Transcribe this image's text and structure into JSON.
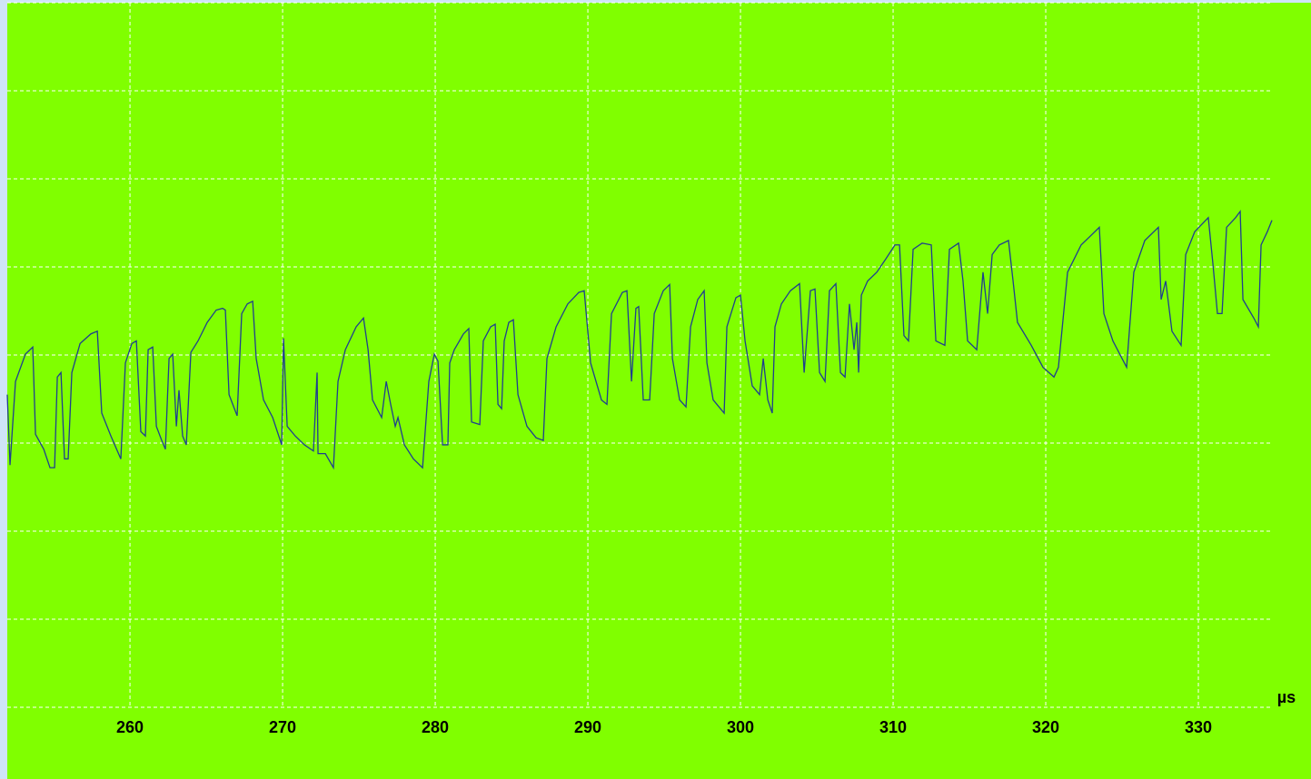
{
  "chart_data": {
    "type": "line",
    "x_label": "µs",
    "xlim": [
      251.96,
      334.82
    ],
    "xticks": [
      260,
      270,
      280,
      290,
      300,
      310,
      320,
      330
    ],
    "ylim": [
      0,
      8
    ],
    "yticks": [
      0,
      1,
      2,
      3,
      4,
      5,
      6,
      7,
      8
    ],
    "grid": true,
    "series": [
      {
        "color": "#1f3f8f",
        "x": [
          251.96,
          252.14,
          252.5,
          253.15,
          253.63,
          253.81,
          254.35,
          254.76,
          255.06,
          255.24,
          255.48,
          255.71,
          255.95,
          256.19,
          256.73,
          257.44,
          257.86,
          258.15,
          258.75,
          259.4,
          259.7,
          260.12,
          260.42,
          260.71,
          261.01,
          261.19,
          261.49,
          261.73,
          262.08,
          262.32,
          262.56,
          262.8,
          263.04,
          263.21,
          263.45,
          263.69,
          263.99,
          264.46,
          265.06,
          265.65,
          266.07,
          266.25,
          266.49,
          267.02,
          267.32,
          267.68,
          268.04,
          268.27,
          268.75,
          269.35,
          269.94,
          270.06,
          270.3,
          270.83,
          271.43,
          272.02,
          272.26,
          272.32,
          272.8,
          273.33,
          273.63,
          274.11,
          274.82,
          275.3,
          275.6,
          275.89,
          276.49,
          276.79,
          277.08,
          277.38,
          277.56,
          277.98,
          278.57,
          279.17,
          279.58,
          279.94,
          280.18,
          280.48,
          280.83,
          280.95,
          281.25,
          281.85,
          282.2,
          282.38,
          282.92,
          283.15,
          283.63,
          283.93,
          284.11,
          284.35,
          284.52,
          284.82,
          285.12,
          285.42,
          286.01,
          286.61,
          287.08,
          287.32,
          287.92,
          288.69,
          289.4,
          289.76,
          290.18,
          290.89,
          291.25,
          291.55,
          292.26,
          292.56,
          292.86,
          293.15,
          293.33,
          293.63,
          294.05,
          294.35,
          294.94,
          295.36,
          295.54,
          296.01,
          296.43,
          296.73,
          297.2,
          297.62,
          297.8,
          298.21,
          298.93,
          299.11,
          299.7,
          300.0,
          300.3,
          300.77,
          301.25,
          301.49,
          301.79,
          302.08,
          302.26,
          302.68,
          303.27,
          303.87,
          304.17,
          304.58,
          304.88,
          305.18,
          305.54,
          305.83,
          306.25,
          306.55,
          306.85,
          307.14,
          307.44,
          307.62,
          307.74,
          307.92,
          308.33,
          308.93,
          309.52,
          310.12,
          310.42,
          310.71,
          311.01,
          311.31,
          311.9,
          312.5,
          312.8,
          313.39,
          313.69,
          314.29,
          314.58,
          314.88,
          315.48,
          315.89,
          316.19,
          316.49,
          316.96,
          317.56,
          317.86,
          318.15,
          319.05,
          319.82,
          320.54,
          320.83,
          321.43,
          322.32,
          322.92,
          323.51,
          323.81,
          324.4,
          325.3,
          325.77,
          326.49,
          327.38,
          327.56,
          327.86,
          328.27,
          328.87,
          329.17,
          329.76,
          330.65,
          330.95,
          331.25,
          331.55,
          331.85,
          332.44,
          332.74,
          332.92,
          333.63,
          333.93,
          334.11,
          334.52,
          334.82
        ],
        "values": [
          3.55,
          2.75,
          3.7,
          4.01,
          4.09,
          3.1,
          2.93,
          2.72,
          2.72,
          3.75,
          3.8,
          2.82,
          2.82,
          3.8,
          4.13,
          4.24,
          4.27,
          3.34,
          3.08,
          2.82,
          3.91,
          4.13,
          4.16,
          3.13,
          3.08,
          4.06,
          4.09,
          3.19,
          3.03,
          2.93,
          3.96,
          4.01,
          3.19,
          3.6,
          3.08,
          2.98,
          4.03,
          4.16,
          4.37,
          4.51,
          4.53,
          4.51,
          3.55,
          3.31,
          4.47,
          4.58,
          4.61,
          3.96,
          3.49,
          3.29,
          2.98,
          4.19,
          3.19,
          3.08,
          2.98,
          2.91,
          3.8,
          2.88,
          2.88,
          2.72,
          3.7,
          4.06,
          4.32,
          4.42,
          4.06,
          3.49,
          3.29,
          3.7,
          3.44,
          3.19,
          3.29,
          2.98,
          2.82,
          2.72,
          3.7,
          4.01,
          3.93,
          2.98,
          2.98,
          3.91,
          4.06,
          4.24,
          4.3,
          3.24,
          3.21,
          4.16,
          4.32,
          4.35,
          3.44,
          3.39,
          4.16,
          4.37,
          4.4,
          3.55,
          3.19,
          3.06,
          3.03,
          3.96,
          4.32,
          4.58,
          4.71,
          4.73,
          3.91,
          3.49,
          3.44,
          4.47,
          4.71,
          4.73,
          3.7,
          4.53,
          4.55,
          3.49,
          3.49,
          4.47,
          4.73,
          4.8,
          3.96,
          3.49,
          3.41,
          4.32,
          4.63,
          4.73,
          3.91,
          3.49,
          3.34,
          4.32,
          4.65,
          4.68,
          4.16,
          3.65,
          3.55,
          3.96,
          3.49,
          3.34,
          4.32,
          4.58,
          4.73,
          4.81,
          3.8,
          4.73,
          4.75,
          3.8,
          3.7,
          4.73,
          4.81,
          3.8,
          3.75,
          4.58,
          4.06,
          4.37,
          3.8,
          4.68,
          4.84,
          4.94,
          5.09,
          5.25,
          5.25,
          4.22,
          4.16,
          5.2,
          5.27,
          5.25,
          4.16,
          4.11,
          5.2,
          5.27,
          4.84,
          4.16,
          4.06,
          4.94,
          4.47,
          5.14,
          5.25,
          5.3,
          4.84,
          4.37,
          4.11,
          3.86,
          3.75,
          3.86,
          4.94,
          5.25,
          5.35,
          5.45,
          4.47,
          4.16,
          3.86,
          4.94,
          5.3,
          5.45,
          4.63,
          4.84,
          4.27,
          4.11,
          5.14,
          5.4,
          5.56,
          5.04,
          4.47,
          4.47,
          5.45,
          5.56,
          5.63,
          4.63,
          4.42,
          4.32,
          5.25,
          5.4,
          5.53
        ]
      }
    ]
  }
}
